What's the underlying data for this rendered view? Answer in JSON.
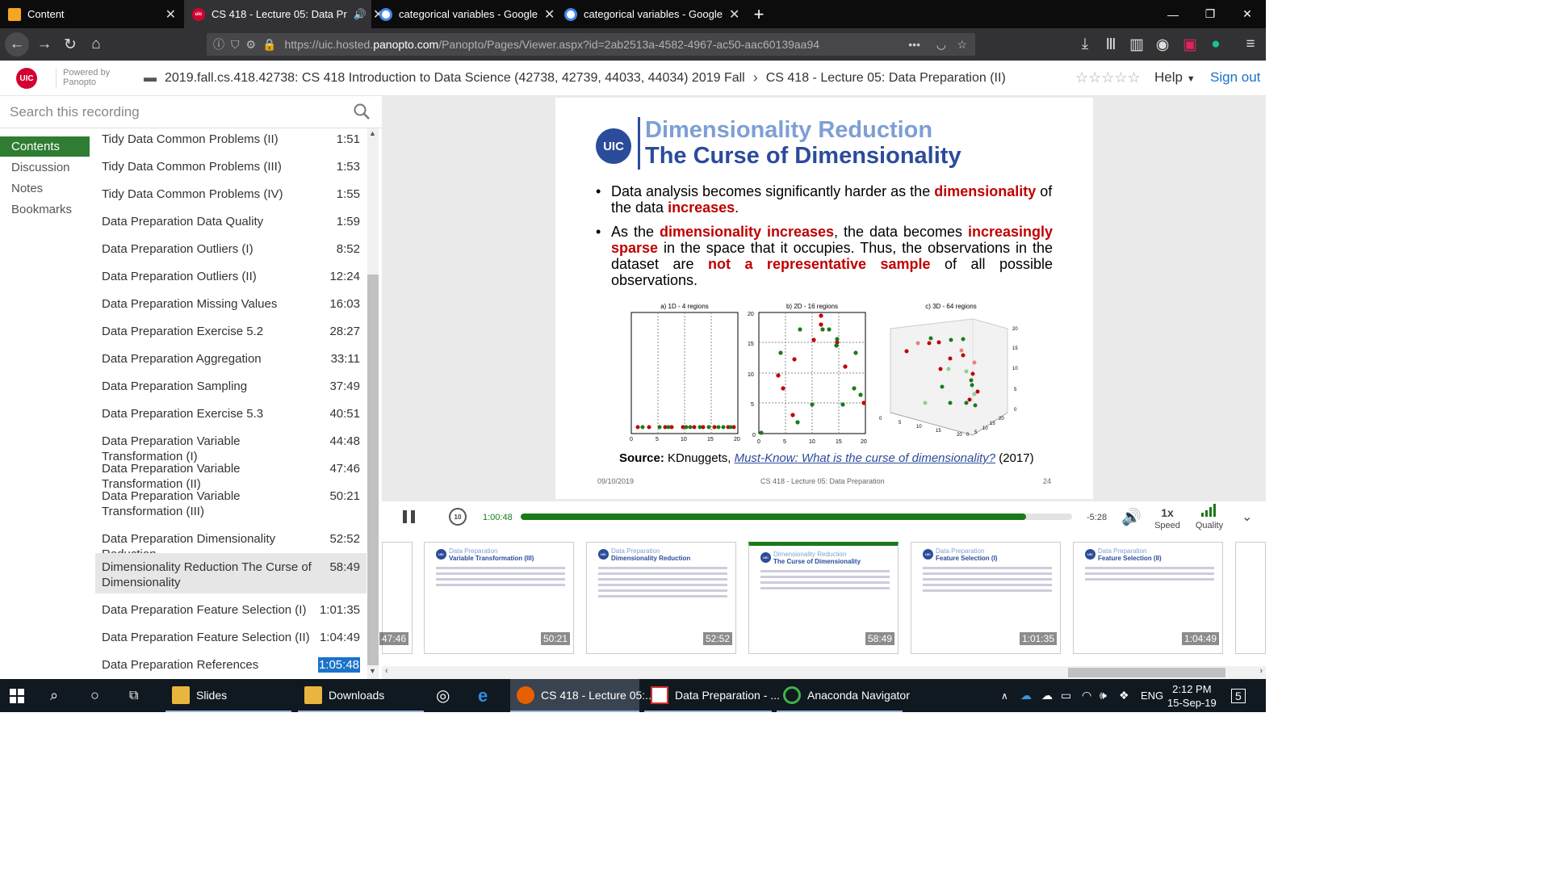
{
  "tabs": [
    {
      "title": "Content",
      "icon": "pencil-icon"
    },
    {
      "title": "CS 418 - Lecture 05: Data Pr",
      "icon": "uic-icon"
    },
    {
      "title": "categorical variables - Google",
      "icon": "google-icon"
    },
    {
      "title": "categorical variables - Google",
      "icon": "google-icon"
    }
  ],
  "url": {
    "prefix": "https://uic.hosted.",
    "domain": "panopto.com",
    "path": "/Panopto/Pages/Viewer.aspx?id=2ab2513a-4582-4967-ac50-aac60139aa94"
  },
  "header": {
    "logo": "UIC",
    "powered1": "Powered by",
    "powered2": "Panopto",
    "folder": "2019.fall.cs.418.42738: CS 418 Introduction to Data Science (42738, 42739, 44033, 44034) 2019 Fall",
    "session": "CS 418 - Lecture 05: Data Preparation (II)",
    "rating": "☆☆☆☆☆",
    "help": "Help",
    "signout": "Sign out"
  },
  "search": {
    "placeholder": "Search this recording"
  },
  "leftnav": [
    "Contents",
    "Discussion",
    "Notes",
    "Bookmarks"
  ],
  "contents": [
    {
      "title": "Tidy Data Common Problems (II)",
      "time": "1:51"
    },
    {
      "title": "Tidy Data Common Problems (III)",
      "time": "1:53"
    },
    {
      "title": "Tidy Data Common Problems (IV)",
      "time": "1:55"
    },
    {
      "title": "Data Preparation Data Quality",
      "time": "1:59"
    },
    {
      "title": "Data Preparation Outliers (I)",
      "time": "8:52"
    },
    {
      "title": "Data Preparation Outliers (II)",
      "time": "12:24"
    },
    {
      "title": "Data Preparation Missing Values",
      "time": "16:03"
    },
    {
      "title": "Data Preparation Exercise 5.2",
      "time": "28:27"
    },
    {
      "title": "Data Preparation Aggregation",
      "time": "33:11"
    },
    {
      "title": "Data Preparation Sampling",
      "time": "37:49"
    },
    {
      "title": "Data Preparation Exercise 5.3",
      "time": "40:51"
    },
    {
      "title": "Data Preparation Variable Transformation (I)",
      "time": "44:48"
    },
    {
      "title": "Data Preparation Variable Transformation (II)",
      "time": "47:46"
    },
    {
      "title": "Data Preparation Variable Transformation (III)",
      "time": "50:21"
    },
    {
      "title": "Data Preparation Dimensionality Reduction",
      "time": "52:52"
    },
    {
      "title": "Dimensionality Reduction The Curse of Dimensionality",
      "time": "58:49"
    },
    {
      "title": "Data Preparation Feature Selection (I)",
      "time": "1:01:35"
    },
    {
      "title": "Data Preparation Feature Selection (II)",
      "time": "1:04:49"
    },
    {
      "title": "Data Preparation References",
      "time": "1:05:48"
    }
  ],
  "slide": {
    "logo": "UIC",
    "title1": "Dimensionality Reduction",
    "title2": "The Curse of Dimensionality",
    "b1a": "Data analysis becomes significantly harder as the ",
    "b1b": "dimensionality",
    "b1c": " of the data ",
    "b1d": "increases",
    "b1e": ".",
    "b2a": "As the ",
    "b2b": "dimensionality increases",
    "b2c": ", the data becomes ",
    "b2d": "increasingly sparse",
    "b2e": " in the space that it occupies. Thus, the observations in the dataset are ",
    "b2f": "not a representative sample",
    "b2g": " of all possible observations.",
    "chart_a": "a) 1D - 4 regions",
    "chart_b": "b) 2D - 16 regions",
    "chart_c": "c) 3D - 64 regions",
    "src_label": "Source:",
    "src_pub": " KDnuggets, ",
    "src_link": "Must-Know: What is the curse of dimensionality?",
    "src_year": " (2017)",
    "date": "09/10/2019",
    "footer": "CS 418 - Lecture 05: Data Preparation",
    "page": "24"
  },
  "player": {
    "current": "1:00:48",
    "remaining": "-5:28",
    "progress": 0.917,
    "speed": "1x",
    "speed_label": "Speed",
    "quality_label": "Quality"
  },
  "thumbs": [
    {
      "t1": "",
      "t2": "",
      "time": "47:46"
    },
    {
      "t1": "Data Preparation",
      "t2": "Variable Transformation (III)",
      "time": "50:21"
    },
    {
      "t1": "Data Preparation",
      "t2": "Dimensionality Reduction",
      "time": "52:52"
    },
    {
      "t1": "Dimensionality Reduction",
      "t2": "The Curse of Dimensionality",
      "time": "58:49"
    },
    {
      "t1": "Data Preparation",
      "t2": "Feature Selection (I)",
      "time": "1:01:35"
    },
    {
      "t1": "Data Preparation",
      "t2": "Feature Selection (II)",
      "time": "1:04:49"
    }
  ],
  "taskbar": {
    "apps": [
      "Slides",
      "Downloads",
      "CS 418 - Lecture 05:...",
      "Data Preparation - ...",
      "Anaconda Navigator"
    ],
    "lang": "ENG",
    "time": "2:12 PM",
    "date": "15-Sep-19",
    "notif": "5"
  },
  "colors": {
    "accent_red": "#c00000",
    "title_blue": "#2b4c9a",
    "title_light": "#7d9fd5",
    "progress_green": "#2e7d32",
    "link_blue": "#1a73c9"
  }
}
